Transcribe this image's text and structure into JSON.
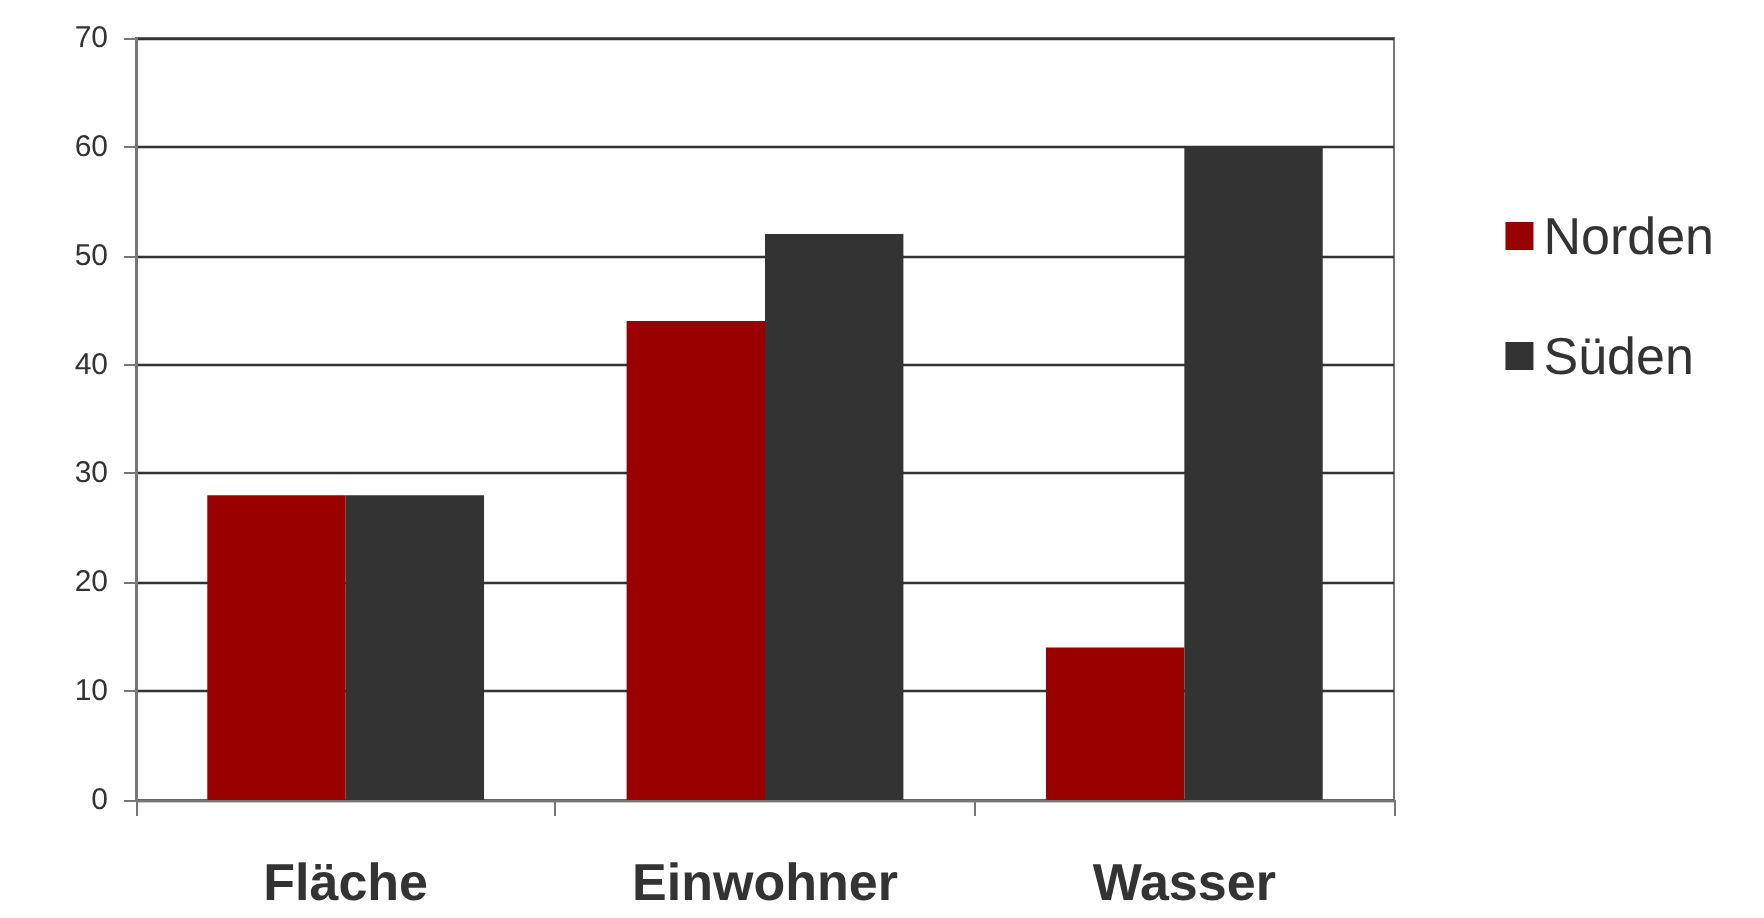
{
  "chart_data": {
    "type": "bar",
    "categories": [
      "Fläche",
      "Einwohner",
      "Wasser"
    ],
    "series": [
      {
        "name": "Norden",
        "color": "#990000",
        "values": [
          28,
          44,
          14
        ]
      },
      {
        "name": "Süden",
        "color": "#333333",
        "values": [
          28,
          52,
          60
        ]
      }
    ],
    "ylim": [
      0,
      70
    ],
    "yticks": [
      0,
      10,
      20,
      30,
      40,
      50,
      60,
      70
    ],
    "grid": "y",
    "legend": "right"
  }
}
